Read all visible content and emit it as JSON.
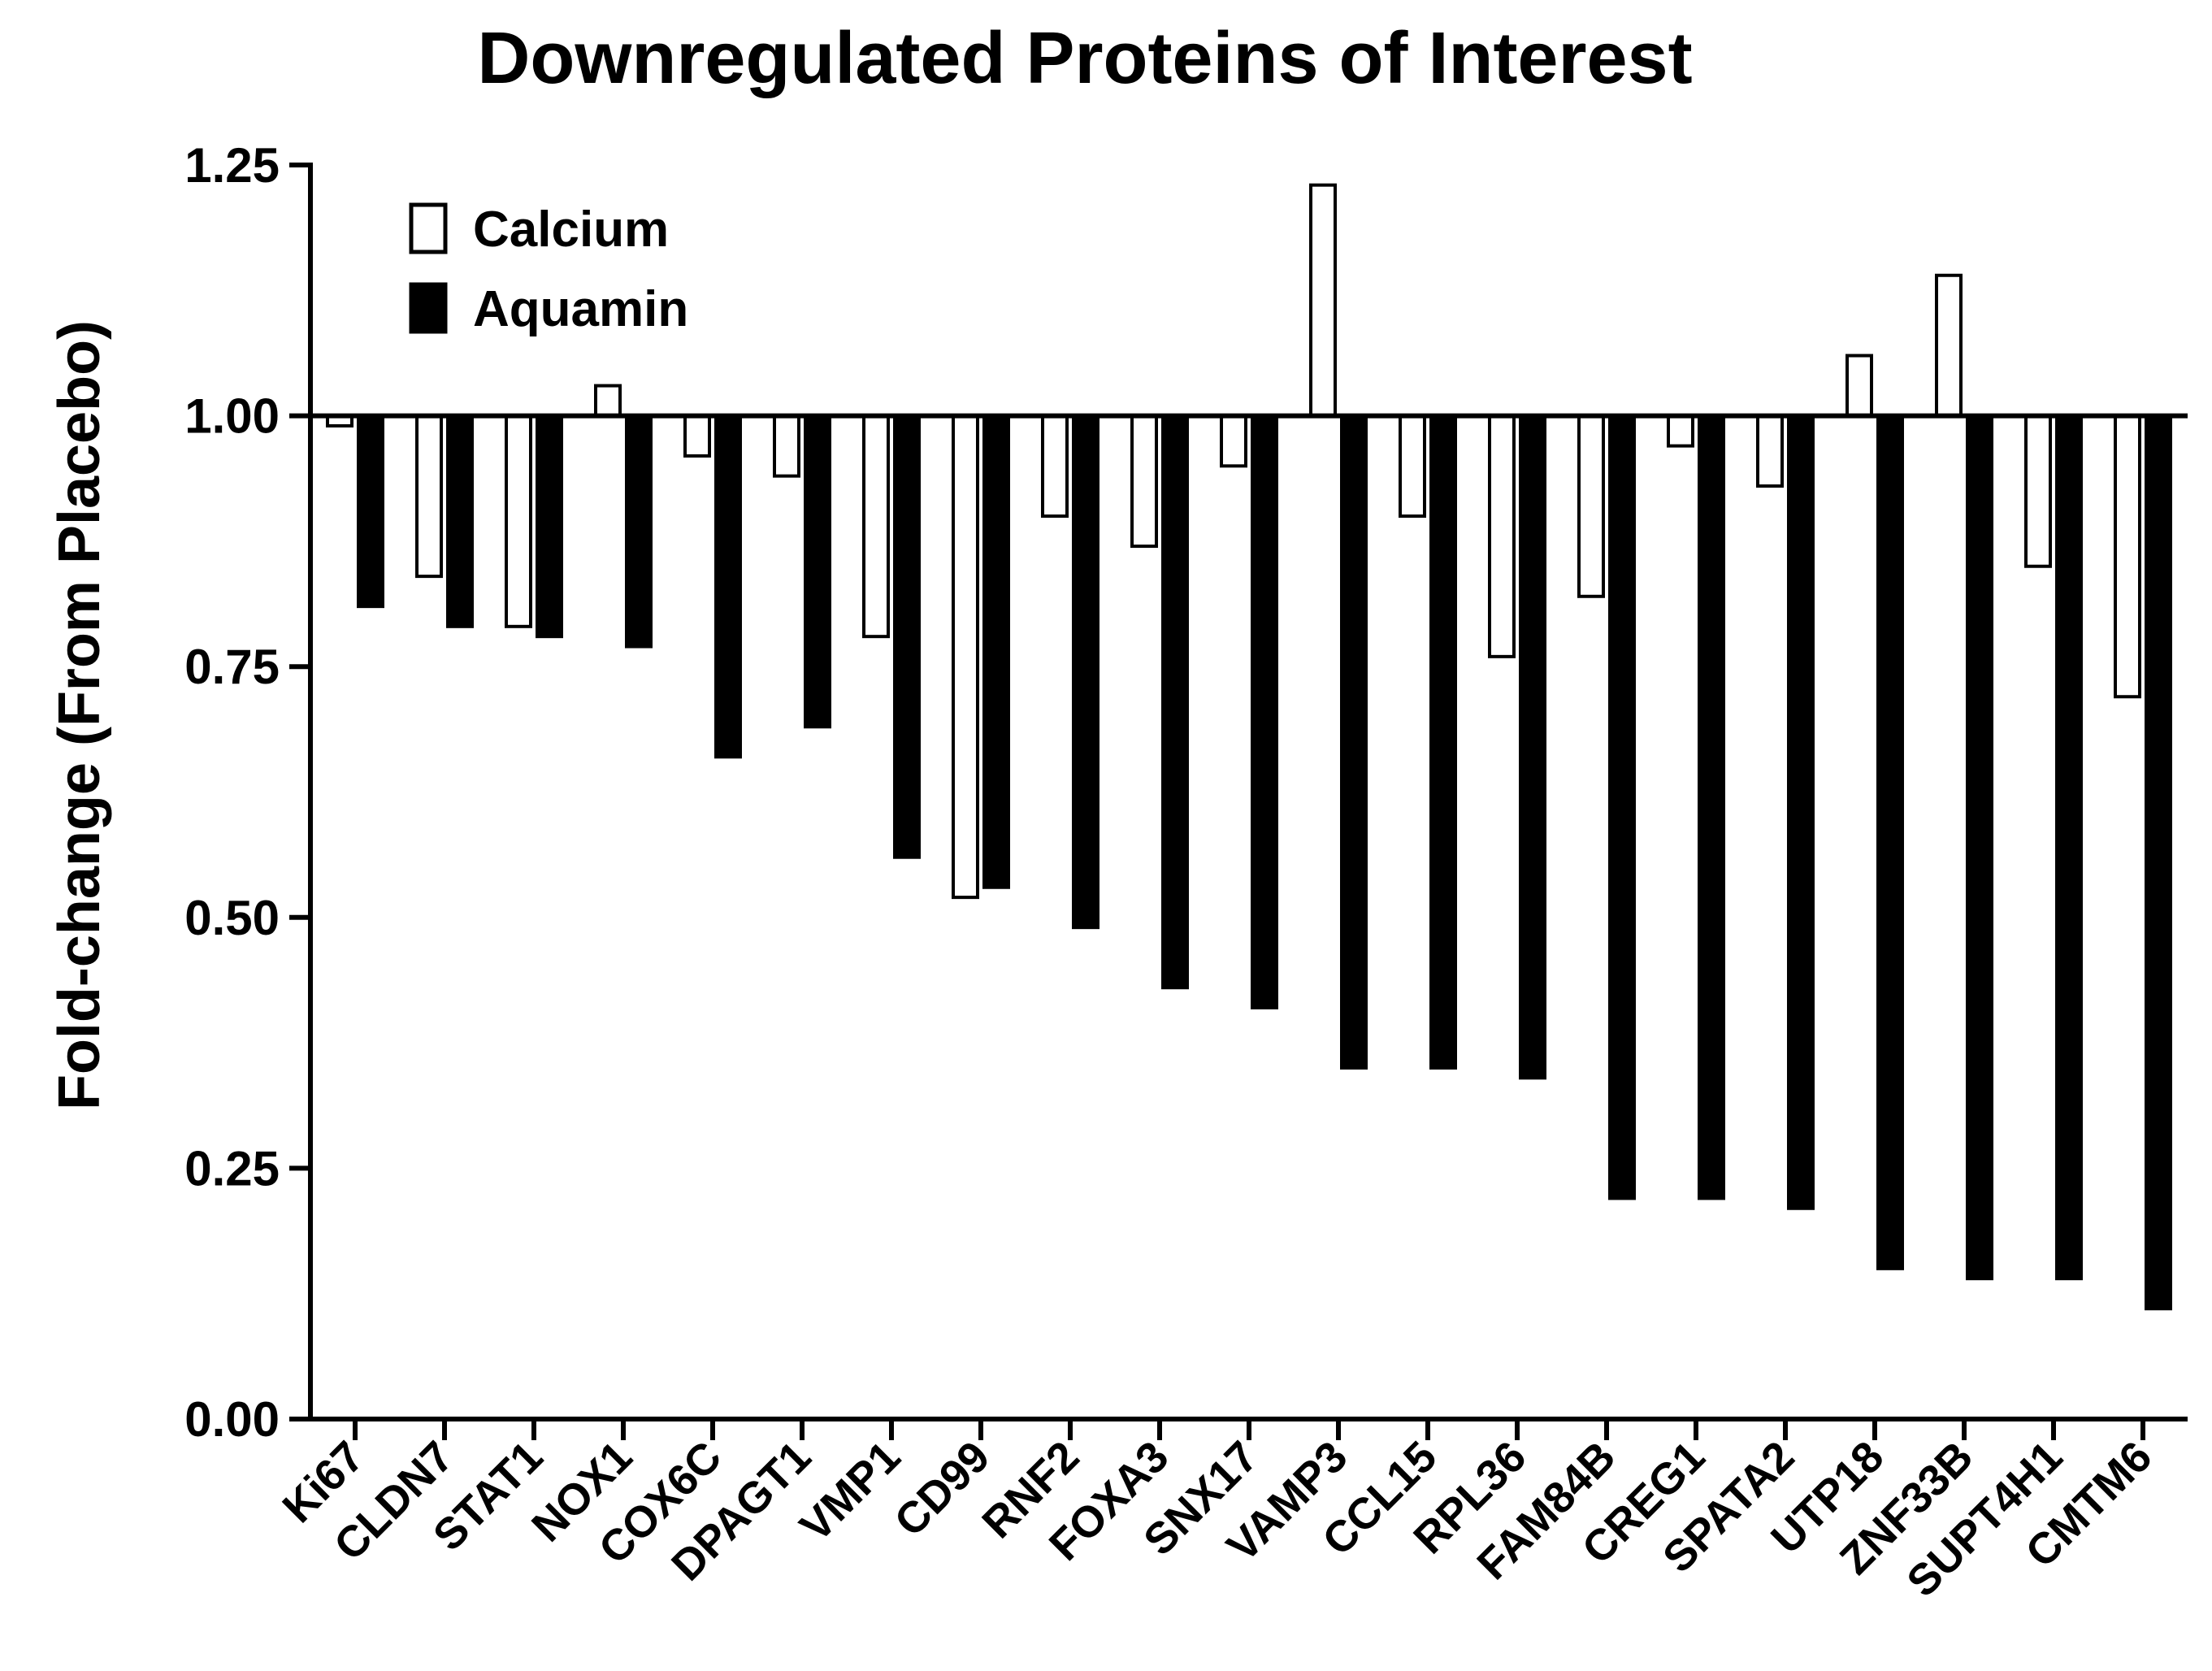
{
  "chart_data": {
    "type": "bar",
    "title": "Downregulated Proteins of Interest",
    "xlabel": "",
    "ylabel": "Fold-change (From Placebo)",
    "ylim": [
      0,
      1.25
    ],
    "yticks": [
      "0.00",
      "0.25",
      "0.50",
      "0.75",
      "1.00",
      "1.25"
    ],
    "baseline": 1.0,
    "legend_position": "top-left",
    "categories": [
      "Ki67",
      "CLDN7",
      "STAT1",
      "NOX1",
      "COX6C",
      "DPAGT1",
      "VMP1",
      "CD99",
      "RNF2",
      "FOXA3",
      "SNX17",
      "VAMP3",
      "CCL15",
      "RPL36",
      "FAM84B",
      "CREG1",
      "SPATA2",
      "UTP18",
      "ZNF33B",
      "SUPT4H1",
      "CMTM6"
    ],
    "series": [
      {
        "name": "Calcium",
        "fill": "#ffffff",
        "values": [
          0.99,
          0.84,
          0.79,
          1.03,
          0.96,
          0.94,
          0.78,
          0.52,
          0.9,
          0.87,
          0.95,
          1.23,
          0.9,
          0.76,
          0.82,
          0.97,
          0.93,
          1.06,
          1.14,
          0.85,
          0.72
        ]
      },
      {
        "name": "Aquamin",
        "fill": "#000000",
        "values": [
          0.81,
          0.79,
          0.78,
          0.77,
          0.66,
          0.69,
          0.56,
          0.53,
          0.49,
          0.43,
          0.41,
          0.35,
          0.35,
          0.34,
          0.22,
          0.22,
          0.21,
          0.15,
          0.14,
          0.14,
          0.11
        ]
      }
    ]
  }
}
